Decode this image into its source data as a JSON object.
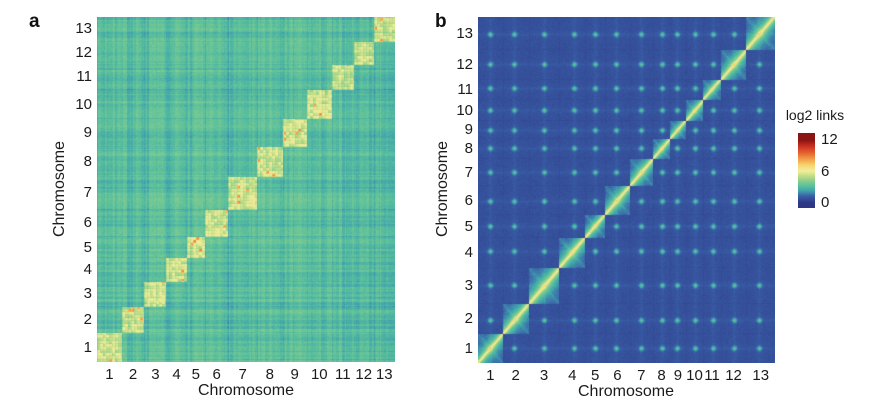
{
  "figure": {
    "background": "#ffffff",
    "panels": [
      {
        "label": "a",
        "xlabel": "Chromosome",
        "ylabel": "Chromosome",
        "tick_labels": [
          "1",
          "2",
          "3",
          "4",
          "5",
          "6",
          "7",
          "8",
          "9",
          "10",
          "11",
          "12",
          "13"
        ]
      },
      {
        "label": "b",
        "xlabel": "Chromosome",
        "ylabel": "Chromosome",
        "tick_labels": [
          "1",
          "2",
          "3",
          "4",
          "5",
          "6",
          "7",
          "8",
          "9",
          "10",
          "11",
          "12",
          "13"
        ]
      }
    ],
    "colorbar": {
      "title": "log2 links",
      "tick_labels": [
        "12",
        "6",
        "0"
      ],
      "tick_values": [
        12,
        6,
        0
      ],
      "range": [
        0,
        12
      ],
      "position": "right"
    }
  },
  "colormap": {
    "stops": [
      {
        "v": 0.0,
        "c": "#2e3784"
      },
      {
        "v": 1.3,
        "c": "#3a5fa8"
      },
      {
        "v": 2.3,
        "c": "#41a3ad"
      },
      {
        "v": 3.2,
        "c": "#58bf9d"
      },
      {
        "v": 4.3,
        "c": "#8ecf8d"
      },
      {
        "v": 5.3,
        "c": "#cadf87"
      },
      {
        "v": 6.1,
        "c": "#f0ef9e"
      },
      {
        "v": 7.2,
        "c": "#f7d571"
      },
      {
        "v": 8.3,
        "c": "#f3a24a"
      },
      {
        "v": 9.6,
        "c": "#e4622e"
      },
      {
        "v": 11.0,
        "c": "#c52b20"
      },
      {
        "v": 12.0,
        "c": "#8a1512"
      }
    ]
  },
  "chart_data": [
    {
      "type": "heatmap",
      "panel": "a",
      "xlabel": "Chromosome",
      "ylabel": "Chromosome",
      "x_categories": [
        "1",
        "2",
        "3",
        "4",
        "5",
        "6",
        "7",
        "8",
        "9",
        "10",
        "11",
        "12",
        "13"
      ],
      "y_categories": [
        "1",
        "2",
        "3",
        "4",
        "5",
        "6",
        "7",
        "8",
        "9",
        "10",
        "11",
        "12",
        "13"
      ],
      "value_label": "log2 links",
      "value_range": [
        0,
        12
      ],
      "grid": false,
      "chrom_size_fracs": [
        0.083,
        0.076,
        0.074,
        0.068,
        0.061,
        0.079,
        0.096,
        0.086,
        0.081,
        0.084,
        0.074,
        0.066,
        0.072
      ],
      "pattern": "bright yellow-green intra-chromosomal blocks on the diagonal over a speckled green inter-chromosomal background",
      "matrix_chromosome_mean_log2_links": [
        [
          6,
          3,
          3,
          3,
          3,
          3,
          3,
          3,
          3,
          3,
          3,
          3,
          3
        ],
        [
          3,
          6,
          3,
          3,
          3,
          3,
          3,
          3,
          3,
          3,
          3,
          3,
          3
        ],
        [
          3,
          3,
          6,
          3,
          3,
          3,
          3,
          3,
          3,
          3,
          3,
          3,
          3
        ],
        [
          3,
          3,
          3,
          6,
          3,
          3,
          3,
          3,
          3,
          3,
          3,
          3,
          3
        ],
        [
          3,
          3,
          3,
          3,
          6,
          3,
          3,
          3,
          3,
          3,
          3,
          3,
          3
        ],
        [
          3,
          3,
          3,
          3,
          3,
          6,
          3,
          3,
          3,
          3,
          3,
          3,
          3
        ],
        [
          3,
          3,
          3,
          3,
          3,
          3,
          6,
          3,
          3,
          3,
          3,
          3,
          3
        ],
        [
          3,
          3,
          3,
          3,
          3,
          3,
          3,
          6,
          3,
          3,
          3,
          3,
          3
        ],
        [
          3,
          3,
          3,
          3,
          3,
          3,
          3,
          3,
          6,
          3,
          3,
          3,
          3
        ],
        [
          3,
          3,
          3,
          3,
          3,
          3,
          3,
          3,
          3,
          6,
          3,
          3,
          3
        ],
        [
          3,
          3,
          3,
          3,
          3,
          3,
          3,
          3,
          3,
          3,
          6,
          3,
          3
        ],
        [
          3,
          3,
          3,
          3,
          3,
          3,
          3,
          3,
          3,
          3,
          3,
          6,
          3
        ],
        [
          3,
          3,
          3,
          3,
          3,
          3,
          3,
          3,
          3,
          3,
          3,
          3,
          6
        ]
      ]
    },
    {
      "type": "heatmap",
      "panel": "b",
      "xlabel": "Chromosome",
      "ylabel": "Chromosome",
      "x_categories": [
        "1",
        "2",
        "3",
        "4",
        "5",
        "6",
        "7",
        "8",
        "9",
        "10",
        "11",
        "12",
        "13"
      ],
      "y_categories": [
        "1",
        "2",
        "3",
        "4",
        "5",
        "6",
        "7",
        "8",
        "9",
        "10",
        "11",
        "12",
        "13"
      ],
      "value_label": "log2 links",
      "value_range": [
        0,
        12
      ],
      "grid": false,
      "legend_position": "right",
      "chrom_size_fracs": [
        0.083,
        0.088,
        0.103,
        0.087,
        0.067,
        0.083,
        0.078,
        0.058,
        0.052,
        0.06,
        0.058,
        0.087,
        0.096
      ],
      "centromere_fracs": [
        0.5,
        0.45,
        0.5,
        0.55,
        0.5,
        0.45,
        0.5,
        0.5,
        0.45,
        0.5,
        0.55,
        0.5,
        0.45
      ],
      "pattern": "sharp yellow main diagonal with teal distance-decay diamonds per chromosome over dark blue background; faint teal dots at centromere-centromere intersections",
      "matrix_chromosome_mean_log2_links": [
        [
          8,
          1,
          1,
          1,
          1,
          1,
          1,
          1,
          1,
          1,
          1,
          1,
          1
        ],
        [
          1,
          8,
          1,
          1,
          1,
          1,
          1,
          1,
          1,
          1,
          1,
          1,
          1
        ],
        [
          1,
          1,
          8,
          1,
          1,
          1,
          1,
          1,
          1,
          1,
          1,
          1,
          1
        ],
        [
          1,
          1,
          1,
          8,
          1,
          1,
          1,
          1,
          1,
          1,
          1,
          1,
          1
        ],
        [
          1,
          1,
          1,
          1,
          8,
          1,
          1,
          1,
          1,
          1,
          1,
          1,
          1
        ],
        [
          1,
          1,
          1,
          1,
          1,
          8,
          1,
          1,
          1,
          1,
          1,
          1,
          1
        ],
        [
          1,
          1,
          1,
          1,
          1,
          1,
          8,
          1,
          1,
          1,
          1,
          1,
          1
        ],
        [
          1,
          1,
          1,
          1,
          1,
          1,
          1,
          8,
          1,
          1,
          1,
          1,
          1
        ],
        [
          1,
          1,
          1,
          1,
          1,
          1,
          1,
          1,
          8,
          1,
          1,
          1,
          1
        ],
        [
          1,
          1,
          1,
          1,
          1,
          1,
          1,
          1,
          1,
          8,
          1,
          1,
          1
        ],
        [
          1,
          1,
          1,
          1,
          1,
          1,
          1,
          1,
          1,
          1,
          8,
          1,
          1
        ],
        [
          1,
          1,
          1,
          1,
          1,
          1,
          1,
          1,
          1,
          1,
          1,
          8,
          1
        ],
        [
          1,
          1,
          1,
          1,
          1,
          1,
          1,
          1,
          1,
          1,
          1,
          1,
          8
        ]
      ]
    }
  ]
}
